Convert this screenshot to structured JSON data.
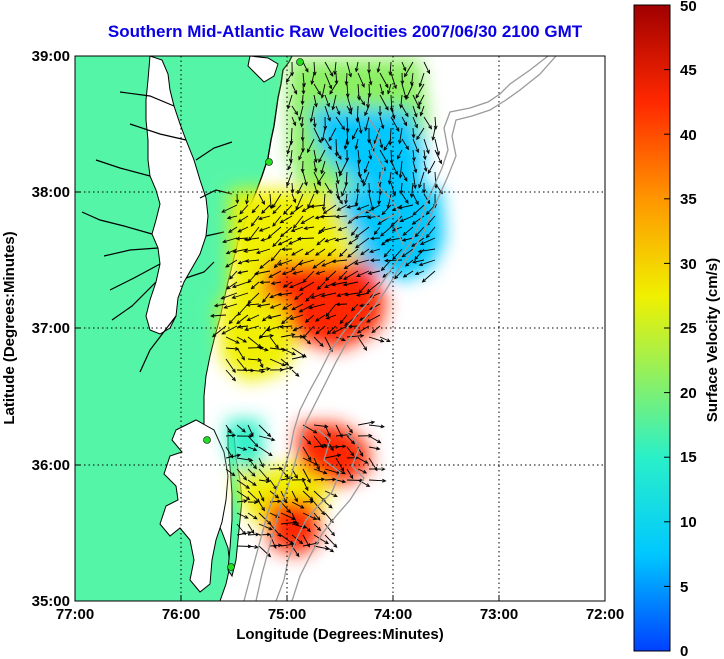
{
  "title": "Southern Mid-Atlantic Raw Velocities 2007/06/30 2100 GMT",
  "x_axis": {
    "label": "Longitude (Degrees:Minutes)",
    "ticks": [
      "77:00",
      "76:00",
      "75:00",
      "74:00",
      "73:00",
      "72:00"
    ]
  },
  "y_axis": {
    "label": "Latitude (Degrees:Minutes)",
    "ticks": [
      "39:00",
      "38:00",
      "37:00",
      "36:00",
      "35:00"
    ]
  },
  "colorbar": {
    "label": "Surface Velocity (cm/s)",
    "ticks": [
      "50",
      "45",
      "40",
      "35",
      "30",
      "25",
      "20",
      "15",
      "10",
      "5",
      "0"
    ],
    "colors": [
      "#0040ff",
      "#00c8ff",
      "#2af0c8",
      "#8cf064",
      "#f0f000",
      "#ff9600",
      "#ff2800",
      "#a00000"
    ]
  },
  "colors": {
    "title": "#0a00e6",
    "land": "#55f5a8",
    "coast": "#000000",
    "bathymetry": "#9a9a9a",
    "station": "#22dd22"
  },
  "chart_data": {
    "type": "heatmap",
    "title": "Southern Mid-Atlantic Raw Velocities 2007/06/30 2100 GMT",
    "xlabel": "Longitude (Degrees:Minutes)",
    "ylabel": "Latitude (Degrees:Minutes)",
    "xlim": [
      -77.0,
      -72.0
    ],
    "ylim": [
      35.0,
      39.0
    ],
    "grid": true,
    "colorbar_range": [
      0,
      50
    ],
    "colorbar_label": "Surface Velocity (cm/s)",
    "regions": [
      {
        "lon": -74.7,
        "lat": 38.6,
        "velocity": 20
      },
      {
        "lon": -74.4,
        "lat": 38.2,
        "velocity": 8
      },
      {
        "lon": -74.3,
        "lat": 37.8,
        "velocity": 10
      },
      {
        "lon": -75.1,
        "lat": 37.6,
        "velocity": 25
      },
      {
        "lon": -74.6,
        "lat": 37.1,
        "velocity": 42
      },
      {
        "lon": -74.7,
        "lat": 36.1,
        "velocity": 45
      },
      {
        "lon": -75.3,
        "lat": 35.8,
        "velocity": 30
      },
      {
        "lon": -75.4,
        "lat": 36.2,
        "velocity": 12
      },
      {
        "lon": -74.9,
        "lat": 35.5,
        "velocity": 42
      }
    ]
  }
}
